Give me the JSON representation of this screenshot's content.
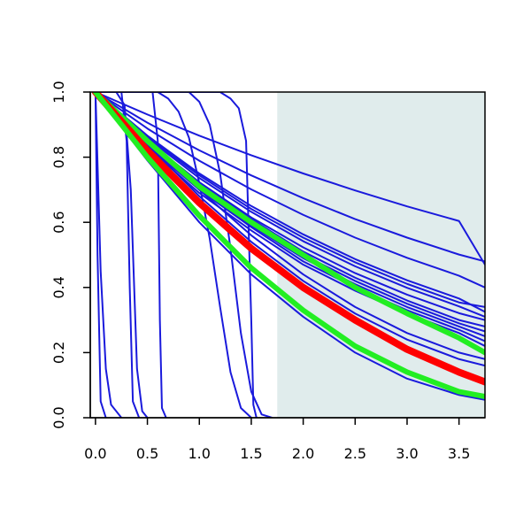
{
  "chart_data": {
    "type": "line",
    "title": "",
    "xlabel": "",
    "ylabel": "",
    "xlim": [
      -0.05,
      3.75
    ],
    "ylim": [
      0,
      1
    ],
    "x_ticks": [
      0.0,
      0.5,
      1.0,
      1.5,
      2.0,
      2.5,
      3.0,
      3.5
    ],
    "x_tick_labels": [
      "0.0",
      "0.5",
      "1.0",
      "1.5",
      "2.0",
      "2.5",
      "3.0",
      "3.5"
    ],
    "y_ticks": [
      0.0,
      0.2,
      0.4,
      0.6,
      0.8,
      1.0
    ],
    "y_tick_labels": [
      "0.0",
      "0.2",
      "0.4",
      "0.6",
      "0.8",
      "1.0"
    ],
    "grid": false,
    "legend": "none",
    "shaded_region": {
      "x": [
        1.75,
        3.75
      ],
      "color": "#e0ecec"
    },
    "colors": {
      "blue": "#1a1adc",
      "red": "#ff0000",
      "green": "#22ee22",
      "axis": "#000000",
      "shade": "#e0ecec"
    },
    "series": [
      {
        "color": "blue",
        "width": 2,
        "x": [
          0,
          0.02,
          0.05,
          0.1
        ],
        "y": [
          1.0,
          0.5,
          0.05,
          0.0
        ]
      },
      {
        "color": "blue",
        "width": 2,
        "x": [
          0,
          0.05,
          0.1,
          0.15,
          0.25
        ],
        "y": [
          1.0,
          0.45,
          0.15,
          0.04,
          0.0
        ]
      },
      {
        "color": "blue",
        "width": 2,
        "x": [
          0,
          0.25,
          0.3,
          0.33,
          0.36,
          0.42
        ],
        "y": [
          1.0,
          1.0,
          0.85,
          0.4,
          0.05,
          0.0
        ]
      },
      {
        "color": "blue",
        "width": 2,
        "x": [
          0,
          0.2,
          0.28,
          0.34,
          0.4,
          0.45,
          0.5
        ],
        "y": [
          1.0,
          1.0,
          0.96,
          0.7,
          0.15,
          0.02,
          0.0
        ]
      },
      {
        "color": "blue",
        "width": 2,
        "x": [
          0,
          0.55,
          0.6,
          0.62,
          0.64,
          0.68
        ],
        "y": [
          1.0,
          1.0,
          0.85,
          0.3,
          0.03,
          0.0
        ]
      },
      {
        "color": "blue",
        "width": 2,
        "x": [
          0,
          0.6,
          0.7,
          0.8,
          0.9,
          1.0,
          1.1,
          1.2,
          1.3,
          1.4,
          1.5
        ],
        "y": [
          1.0,
          1.0,
          0.98,
          0.94,
          0.86,
          0.72,
          0.55,
          0.34,
          0.14,
          0.03,
          0.0
        ]
      },
      {
        "color": "blue",
        "width": 2,
        "x": [
          0,
          0.9,
          1.0,
          1.1,
          1.2,
          1.3,
          1.4,
          1.5,
          1.6,
          1.7
        ],
        "y": [
          1.0,
          1.0,
          0.97,
          0.9,
          0.75,
          0.52,
          0.26,
          0.08,
          0.01,
          0.0
        ]
      },
      {
        "color": "blue",
        "width": 2,
        "x": [
          0,
          1.2,
          1.3,
          1.38,
          1.45,
          1.5,
          1.52,
          1.55
        ],
        "y": [
          1.0,
          1.0,
          0.98,
          0.95,
          0.85,
          0.3,
          0.04,
          0.0
        ]
      },
      {
        "color": "blue",
        "width": 2,
        "x": [
          0,
          0.5,
          1.0,
          1.5,
          2.0,
          2.5,
          3.0,
          3.5,
          3.75
        ],
        "y": [
          1.0,
          0.931,
          0.866,
          0.806,
          0.75,
          0.698,
          0.649,
          0.604,
          0.47
        ]
      },
      {
        "color": "blue",
        "width": 2,
        "x": [
          0,
          0.5,
          1.0,
          1.5,
          2.0,
          2.5,
          3.0,
          3.5,
          3.75
        ],
        "y": [
          1.0,
          0.906,
          0.821,
          0.744,
          0.674,
          0.61,
          0.553,
          0.501,
          0.48
        ]
      },
      {
        "color": "blue",
        "width": 2,
        "x": [
          0,
          0.5,
          1.0,
          1.5,
          2.0,
          2.5,
          3.0,
          3.5,
          3.75
        ],
        "y": [
          1.0,
          0.888,
          0.789,
          0.701,
          0.623,
          0.553,
          0.491,
          0.436,
          0.4
        ]
      },
      {
        "color": "blue",
        "width": 2,
        "x": [
          0,
          0.5,
          1.0,
          1.5,
          2.0,
          2.5,
          3.0,
          3.5,
          3.75
        ],
        "y": [
          1.0,
          0.862,
          0.744,
          0.641,
          0.553,
          0.477,
          0.411,
          0.354,
          0.34
        ]
      },
      {
        "color": "blue",
        "width": 2,
        "x": [
          0,
          0.5,
          1.0,
          1.5,
          2.0,
          2.5,
          3.0,
          3.5,
          3.75
        ],
        "y": [
          1.0,
          0.866,
          0.75,
          0.65,
          0.563,
          0.487,
          0.422,
          0.366,
          0.325
        ]
      },
      {
        "color": "blue",
        "width": 2,
        "x": [
          0,
          0.5,
          1.0,
          1.5,
          2.0,
          2.5,
          3.0,
          3.5,
          3.75
        ],
        "y": [
          1.0,
          0.858,
          0.736,
          0.632,
          0.542,
          0.465,
          0.399,
          0.342,
          0.31
        ]
      },
      {
        "color": "blue",
        "width": 2,
        "x": [
          0,
          0.5,
          1.0,
          1.5,
          2.0,
          2.5,
          3.0,
          3.5,
          3.75
        ],
        "y": [
          1.0,
          0.85,
          0.723,
          0.615,
          0.523,
          0.444,
          0.378,
          0.321,
          0.3
        ]
      },
      {
        "color": "blue",
        "width": 2,
        "x": [
          0,
          0.5,
          1.0,
          1.5,
          2.0,
          2.5,
          3.0,
          3.5,
          3.75
        ],
        "y": [
          1.0,
          0.85,
          0.72,
          0.61,
          0.51,
          0.43,
          0.36,
          0.3,
          0.28
        ]
      },
      {
        "color": "blue",
        "width": 2,
        "x": [
          0,
          0.5,
          1.0,
          1.5,
          2.0,
          2.5,
          3.0,
          3.5,
          3.75
        ],
        "y": [
          1.0,
          0.845,
          0.713,
          0.602,
          0.5,
          0.42,
          0.35,
          0.29,
          0.265
        ]
      },
      {
        "color": "blue",
        "width": 2,
        "x": [
          0,
          0.5,
          1.0,
          1.5,
          2.0,
          2.5,
          3.0,
          3.5,
          3.75
        ],
        "y": [
          1.0,
          0.84,
          0.705,
          0.59,
          0.49,
          0.41,
          0.34,
          0.28,
          0.25
        ]
      },
      {
        "color": "blue",
        "width": 2,
        "x": [
          0,
          0.5,
          1.0,
          1.5,
          2.0,
          2.5,
          3.0,
          3.5,
          3.75
        ],
        "y": [
          1.0,
          0.835,
          0.7,
          0.585,
          0.48,
          0.4,
          0.33,
          0.27,
          0.235
        ]
      },
      {
        "color": "blue",
        "width": 2,
        "x": [
          0,
          0.5,
          1.0,
          1.5,
          2.0,
          2.5,
          3.0,
          3.5,
          3.75
        ],
        "y": [
          1.0,
          0.83,
          0.69,
          0.575,
          0.47,
          0.39,
          0.32,
          0.26,
          0.22
        ]
      },
      {
        "color": "blue",
        "width": 2,
        "x": [
          0,
          0.5,
          1.0,
          1.5,
          2.0,
          2.5,
          3.0,
          3.5,
          3.75
        ],
        "y": [
          1.0,
          0.85,
          0.7,
          0.56,
          0.44,
          0.34,
          0.26,
          0.2,
          0.18
        ]
      },
      {
        "color": "blue",
        "width": 2,
        "x": [
          0,
          0.5,
          1.0,
          1.5,
          2.0,
          2.5,
          3.0,
          3.5,
          3.75
        ],
        "y": [
          1.0,
          0.84,
          0.68,
          0.54,
          0.42,
          0.32,
          0.24,
          0.18,
          0.16
        ]
      },
      {
        "color": "blue",
        "width": 2,
        "x": [
          0,
          0.25,
          0.5,
          1.0,
          1.5,
          2.0,
          2.5,
          3.0,
          3.5,
          3.75
        ],
        "y": [
          1.0,
          0.893,
          0.79,
          0.6,
          0.44,
          0.31,
          0.2,
          0.12,
          0.07,
          0.055
        ]
      },
      {
        "color": "green",
        "width": 6,
        "x": [
          0,
          0.25,
          0.5,
          1.0,
          1.5,
          2.0,
          2.5,
          3.0,
          3.5,
          3.75
        ],
        "y": [
          1.0,
          0.925,
          0.85,
          0.71,
          0.6,
          0.5,
          0.4,
          0.32,
          0.245,
          0.2
        ]
      },
      {
        "color": "red",
        "width": 8,
        "x": [
          0,
          0.25,
          0.5,
          1.0,
          1.5,
          2.0,
          2.5,
          3.0,
          3.5,
          3.75
        ],
        "y": [
          1.0,
          0.91,
          0.82,
          0.66,
          0.52,
          0.4,
          0.3,
          0.21,
          0.14,
          0.11
        ]
      },
      {
        "color": "green",
        "width": 6,
        "x": [
          0,
          0.25,
          0.5,
          1.0,
          1.5,
          2.0,
          2.5,
          3.0,
          3.5,
          3.75
        ],
        "y": [
          1.0,
          0.9,
          0.8,
          0.62,
          0.46,
          0.33,
          0.22,
          0.14,
          0.08,
          0.065
        ]
      }
    ]
  }
}
